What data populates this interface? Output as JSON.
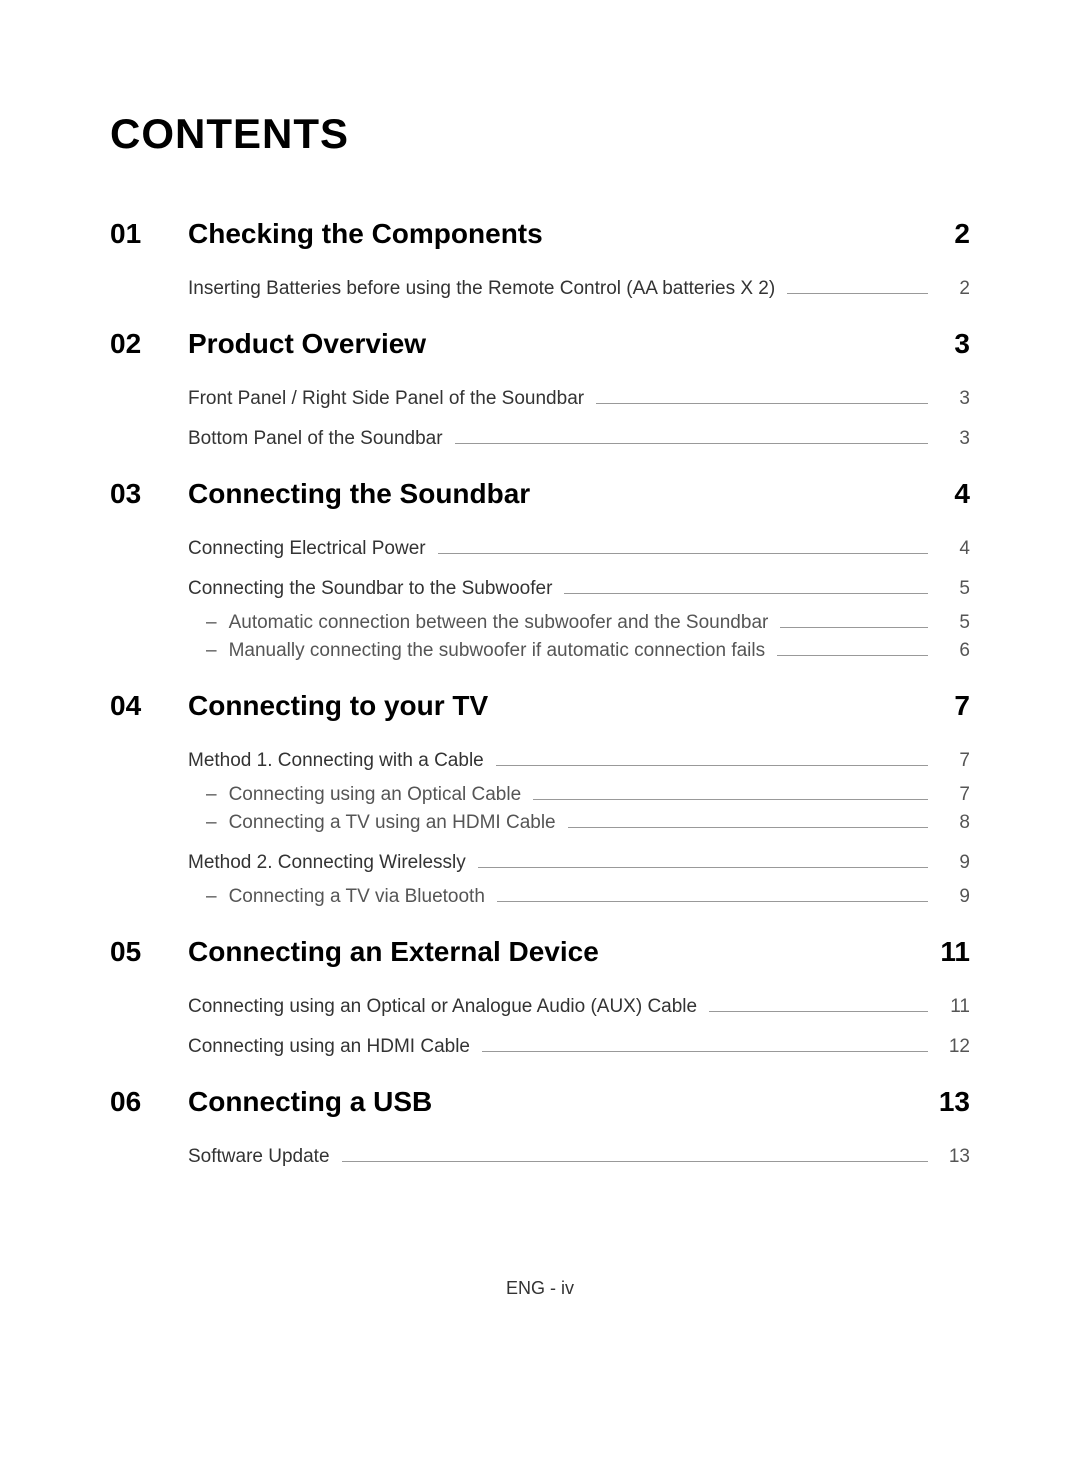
{
  "title": "CONTENTS",
  "footer": "ENG - iv",
  "sections": [
    {
      "num": "01",
      "title": "Checking the Components",
      "page": "2",
      "entries": [
        {
          "text": "Inserting Batteries before using the Remote Control (AA batteries X 2)",
          "page": "2",
          "subs": []
        }
      ]
    },
    {
      "num": "02",
      "title": "Product Overview",
      "page": "3",
      "entries": [
        {
          "text": "Front Panel / Right Side Panel of the Soundbar",
          "page": "3",
          "subs": []
        },
        {
          "text": "Bottom Panel of the Soundbar",
          "page": "3",
          "subs": []
        }
      ]
    },
    {
      "num": "03",
      "title": "Connecting the Soundbar",
      "page": "4",
      "entries": [
        {
          "text": "Connecting Electrical Power",
          "page": "4",
          "subs": []
        },
        {
          "text": "Connecting the Soundbar to the Subwoofer",
          "page": "5",
          "subs": [
            {
              "text": "Automatic connection between the subwoofer and the Soundbar",
              "page": "5"
            },
            {
              "text": "Manually connecting the subwoofer if automatic connection fails",
              "page": "6"
            }
          ]
        }
      ]
    },
    {
      "num": "04",
      "title": "Connecting to your TV",
      "page": "7",
      "entries": [
        {
          "text": "Method 1. Connecting with a Cable",
          "page": "7",
          "subs": [
            {
              "text": "Connecting using an Optical Cable",
              "page": "7"
            },
            {
              "text": "Connecting a TV using an HDMI Cable",
              "page": "8"
            }
          ]
        },
        {
          "text": "Method 2. Connecting Wirelessly",
          "page": "9",
          "subs": [
            {
              "text": "Connecting a TV via Bluetooth",
              "page": "9"
            }
          ]
        }
      ]
    },
    {
      "num": "05",
      "title": "Connecting an External Device",
      "page": "11",
      "entries": [
        {
          "text": "Connecting using an Optical or Analogue Audio (AUX) Cable",
          "page": "11",
          "subs": []
        },
        {
          "text": "Connecting using an HDMI Cable",
          "page": "12",
          "subs": []
        }
      ]
    },
    {
      "num": "06",
      "title": "Connecting a USB",
      "page": "13",
      "entries": [
        {
          "text": "Software Update",
          "page": "13",
          "subs": []
        }
      ]
    }
  ]
}
